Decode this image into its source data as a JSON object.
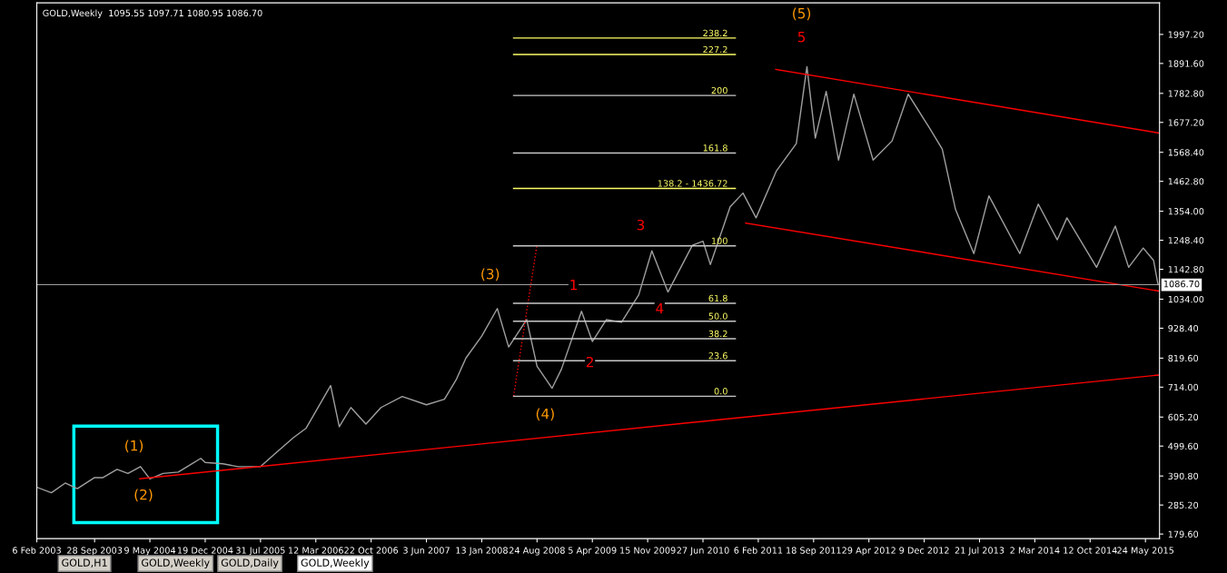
{
  "chart_data": {
    "type": "line",
    "title": "GOLD,Weekly  1095.55 1097.71 1080.95 1086.70",
    "xlim": [
      "2003-02-06",
      "2015-07-20"
    ],
    "xticks": [
      {
        "value": "2003-02-06",
        "label": "6 Feb 2003"
      },
      {
        "value": "2003-09-28",
        "label": "28 Sep 2003"
      },
      {
        "value": "2004-05-09",
        "label": "9 May 2004"
      },
      {
        "value": "2004-12-19",
        "label": "19 Dec 2004"
      },
      {
        "value": "2005-07-31",
        "label": "31 Jul 2005"
      },
      {
        "value": "2006-03-12",
        "label": "12 Mar 2006"
      },
      {
        "value": "2006-10-22",
        "label": "22 Oct 2006"
      },
      {
        "value": "2007-06-03",
        "label": "3 Jun 2007"
      },
      {
        "value": "2008-01-13",
        "label": "13 Jan 2008"
      },
      {
        "value": "2008-08-24",
        "label": "24 Aug 2008"
      },
      {
        "value": "2009-04-05",
        "label": "5 Apr 2009"
      },
      {
        "value": "2009-11-15",
        "label": "15 Nov 2009"
      },
      {
        "value": "2010-06-27",
        "label": "27 Jun 2010"
      },
      {
        "value": "2011-02-06",
        "label": "6 Feb 2011"
      },
      {
        "value": "2011-09-18",
        "label": "18 Sep 2011"
      },
      {
        "value": "2012-04-29",
        "label": "29 Apr 2012"
      },
      {
        "value": "2012-12-09",
        "label": "9 Dec 2012"
      },
      {
        "value": "2013-07-21",
        "label": "21 Jul 2013"
      },
      {
        "value": "2014-03-02",
        "label": "2 Mar 2014"
      },
      {
        "value": "2014-10-12",
        "label": "12 Oct 2014"
      },
      {
        "value": "2015-05-24",
        "label": "24 May 2015"
      }
    ],
    "ylim": [
      163,
      2112
    ],
    "yticks": [
      {
        "value": 179.6,
        "label": "179.60"
      },
      {
        "value": 285.2,
        "label": "285.20"
      },
      {
        "value": 390.8,
        "label": "390.80"
      },
      {
        "value": 499.6,
        "label": "499.60"
      },
      {
        "value": 605.2,
        "label": "605.20"
      },
      {
        "value": 714.0,
        "label": "714.00"
      },
      {
        "value": 819.6,
        "label": "819.60"
      },
      {
        "value": 928.4,
        "label": "928.40"
      },
      {
        "value": 1034.0,
        "label": "1034.00"
      },
      {
        "value": 1142.8,
        "label": "1142.80"
      },
      {
        "value": 1248.4,
        "label": "1248.40"
      },
      {
        "value": 1354.0,
        "label": "1354.00"
      },
      {
        "value": 1462.8,
        "label": "1462.80"
      },
      {
        "value": 1568.4,
        "label": "1568.40"
      },
      {
        "value": 1677.2,
        "label": "1677.20"
      },
      {
        "value": 1782.8,
        "label": "1782.80"
      },
      {
        "value": 1891.6,
        "label": "1891.60"
      },
      {
        "value": 1997.2,
        "label": "1997.20"
      }
    ],
    "grid": false,
    "legend": false,
    "series": [
      {
        "color": "#a0a0a0",
        "x": [
          "2003-02-06",
          "2003-04-06",
          "2003-06-01",
          "2003-07-20",
          "2003-09-28",
          "2003-11-01",
          "2003-12-28",
          "2004-02-10",
          "2004-04-01",
          "2004-05-09",
          "2004-07-01",
          "2004-09-01",
          "2004-12-01",
          "2004-12-19",
          "2005-03-01",
          "2005-05-01",
          "2005-07-31",
          "2005-09-25",
          "2005-12-11",
          "2006-02-01",
          "2006-05-11",
          "2006-06-15",
          "2006-08-01",
          "2006-10-01",
          "2006-12-01",
          "2007-02-25",
          "2007-06-03",
          "2007-08-15",
          "2007-10-01",
          "2007-11-10",
          "2008-01-13",
          "2008-03-16",
          "2008-05-01",
          "2008-07-13",
          "2008-08-24",
          "2008-10-24",
          "2008-12-01",
          "2009-02-20",
          "2009-04-05",
          "2009-06-01",
          "2009-08-01",
          "2009-10-10",
          "2009-12-02",
          "2010-02-05",
          "2010-05-15",
          "2010-06-27",
          "2010-07-27",
          "2010-10-15",
          "2010-12-06",
          "2011-01-28",
          "2011-04-20",
          "2011-07-10",
          "2011-08-22",
          "2011-09-25",
          "2011-11-08",
          "2011-12-28",
          "2012-02-28",
          "2012-05-16",
          "2012-08-01",
          "2012-10-05",
          "2012-12-28",
          "2013-02-20",
          "2013-04-15",
          "2013-06-28",
          "2013-08-28",
          "2013-12-31",
          "2014-03-16",
          "2014-06-01",
          "2014-07-10",
          "2014-11-07",
          "2015-01-22",
          "2015-03-17",
          "2015-05-15",
          "2015-06-26",
          "2015-07-14"
        ],
        "values": [
          350,
          330,
          365,
          345,
          385,
          385,
          415,
          400,
          425,
          380,
          400,
          405,
          455,
          440,
          435,
          425,
          425,
          470,
          530,
          565,
          720,
          570,
          640,
          580,
          640,
          680,
          650,
          670,
          740,
          820,
          900,
          1000,
          860,
          960,
          790,
          710,
          780,
          990,
          880,
          960,
          950,
          1050,
          1210,
          1060,
          1230,
          1245,
          1160,
          1370,
          1420,
          1330,
          1500,
          1600,
          1880,
          1620,
          1790,
          1540,
          1780,
          1540,
          1610,
          1780,
          1660,
          1580,
          1360,
          1200,
          1410,
          1200,
          1380,
          1250,
          1330,
          1150,
          1300,
          1150,
          1220,
          1175,
          1087
        ]
      },
      {
        "color": "#ff0000",
        "x": [
          "2004-03-29",
          "2015-07-15"
        ],
        "values": [
          381,
          758
        ]
      },
      {
        "color": "#ff0000",
        "x": [
          "2011-04-18",
          "2015-07-15"
        ],
        "values": [
          1870,
          1639
        ]
      },
      {
        "color": "#ff0000",
        "x": [
          "2010-12-17",
          "2015-07-15"
        ],
        "values": [
          1311,
          1064
        ]
      },
      {
        "color": "#ff0000",
        "line_style": "dotted",
        "x": [
          "2008-05-21",
          "2008-08-23"
        ],
        "values": [
          681,
          1228
        ]
      },
      {
        "name": "0.0",
        "color": "#c8c8c8",
        "x": [
          "2008-05-21",
          "2010-11-05"
        ],
        "values": [
          681,
          681
        ]
      },
      {
        "name": "23.6",
        "color": "#c8c8c8",
        "x": [
          "2008-05-21",
          "2010-11-05"
        ],
        "values": [
          810,
          810
        ]
      },
      {
        "name": "38.2",
        "color": "#c8c8c8",
        "x": [
          "2008-05-21",
          "2010-11-05"
        ],
        "values": [
          890,
          890
        ]
      },
      {
        "name": "50.0",
        "color": "#c8c8c8",
        "x": [
          "2008-05-21",
          "2010-11-05"
        ],
        "values": [
          954,
          954
        ]
      },
      {
        "name": "61.8",
        "color": "#c8c8c8",
        "x": [
          "2008-05-21",
          "2010-11-05"
        ],
        "values": [
          1019,
          1019
        ]
      },
      {
        "name": "100",
        "color": "#c8c8c8",
        "x": [
          "2008-05-21",
          "2010-11-05"
        ],
        "values": [
          1228,
          1228
        ]
      },
      {
        "name": "138.2 - 1436.72",
        "color": "#ffff66",
        "x": [
          "2008-05-21",
          "2010-11-05"
        ],
        "values": [
          1437,
          1437
        ]
      },
      {
        "name": "161.8",
        "color": "#c8c8c8",
        "x": [
          "2008-05-21",
          "2010-11-05"
        ],
        "values": [
          1566,
          1566
        ]
      },
      {
        "name": "200",
        "color": "#c8c8c8",
        "x": [
          "2008-05-21",
          "2010-11-05"
        ],
        "values": [
          1775,
          1775
        ]
      },
      {
        "name": "227.2",
        "color": "#ffff66",
        "x": [
          "2008-05-21",
          "2010-11-05"
        ],
        "values": [
          1924,
          1924
        ]
      },
      {
        "name": "238.2",
        "color": "#ffff66",
        "x": [
          "2008-05-21",
          "2010-11-05"
        ],
        "values": [
          1984,
          1984
        ]
      }
    ],
    "ref_lines": [
      {
        "axis": "y",
        "value": 1086.7,
        "label": "1086.70",
        "color": "#a0a0a0"
      }
    ],
    "annotations": [
      "(1)",
      "(2)",
      "(3)",
      "(4)",
      "(5)",
      "1",
      "2",
      "3",
      "4",
      "5",
      "GOLD,H1",
      "GOLD,Weekly",
      "GOLD,Daily",
      "GOLD,Weekly"
    ]
  }
}
